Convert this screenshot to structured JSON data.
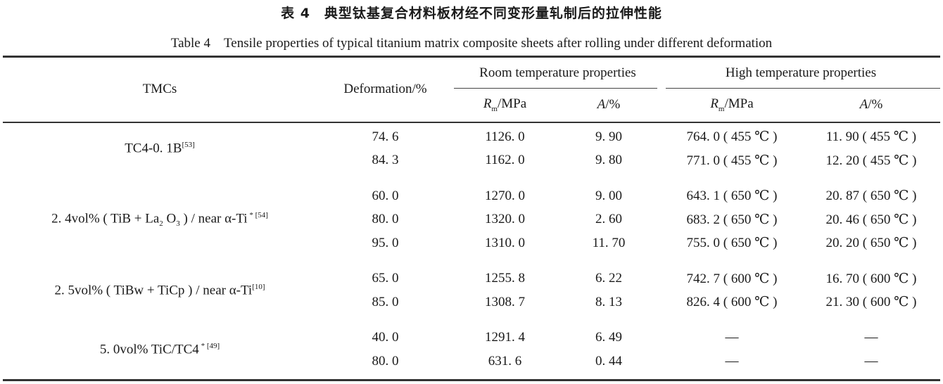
{
  "caption": {
    "cn": "表 4　典型钛基复合材料板材经不同变形量轧制后的拉伸性能",
    "en": "Table 4　Tensile properties of typical titanium matrix composite sheets after rolling under different deformation"
  },
  "header": {
    "tmcs": "TMCs",
    "deformation": "Deformation/%",
    "room": "Room temperature properties",
    "high": "High temperature properties",
    "rm_symbol": "R",
    "rm_sub": "m",
    "rm_unit": "/MPa",
    "a_symbol": "A",
    "a_unit": "/%"
  },
  "groups": [
    {
      "name": [
        {
          "t": "TC4-0. 1B"
        },
        {
          "t": "[53]",
          "s": "sup"
        }
      ],
      "rows": [
        [
          "74. 6",
          "1126. 0",
          "9. 90",
          "764. 0 ( 455 ℃ )",
          "11. 90 ( 455 ℃ )"
        ],
        [
          "84. 3",
          "1162. 0",
          "9. 80",
          "771. 0 ( 455 ℃ )",
          "12. 20 ( 455 ℃ )"
        ]
      ]
    },
    {
      "name": [
        {
          "t": "2. 4vol% ( TiB + La"
        },
        {
          "t": "2",
          "s": "sub"
        },
        {
          "t": " O"
        },
        {
          "t": "3",
          "s": "sub"
        },
        {
          "t": " ) / near α-Ti"
        },
        {
          "t": " * [54]",
          "s": "sup"
        }
      ],
      "rows": [
        [
          "60. 0",
          "1270. 0",
          "9. 00",
          "643. 1 ( 650 ℃ )",
          "20. 87 ( 650 ℃ )"
        ],
        [
          "80. 0",
          "1320. 0",
          "2. 60",
          "683. 2 ( 650 ℃ )",
          "20. 46 ( 650 ℃ )"
        ],
        [
          "95. 0",
          "1310. 0",
          "11. 70",
          "755. 0 ( 650 ℃ )",
          "20. 20 ( 650 ℃ )"
        ]
      ]
    },
    {
      "name": [
        {
          "t": "2. 5vol% ( TiBw + TiCp ) / near α-Ti"
        },
        {
          "t": "[10]",
          "s": "sup"
        }
      ],
      "rows": [
        [
          "65. 0",
          "1255. 8",
          "6. 22",
          "742. 7 ( 600 ℃ )",
          "16. 70 ( 600 ℃ )"
        ],
        [
          "85. 0",
          "1308. 7",
          "8. 13",
          "826. 4 ( 600 ℃ )",
          "21. 30 ( 600 ℃ )"
        ]
      ]
    },
    {
      "name": [
        {
          "t": "5. 0vol% TiC/TC4"
        },
        {
          "t": " * [49]",
          "s": "sup"
        }
      ],
      "rows": [
        [
          "40. 0",
          "1291. 4",
          "6. 49",
          "—",
          "—"
        ],
        [
          "80. 0",
          "631. 6",
          "0. 44",
          "—",
          "—"
        ]
      ]
    }
  ]
}
